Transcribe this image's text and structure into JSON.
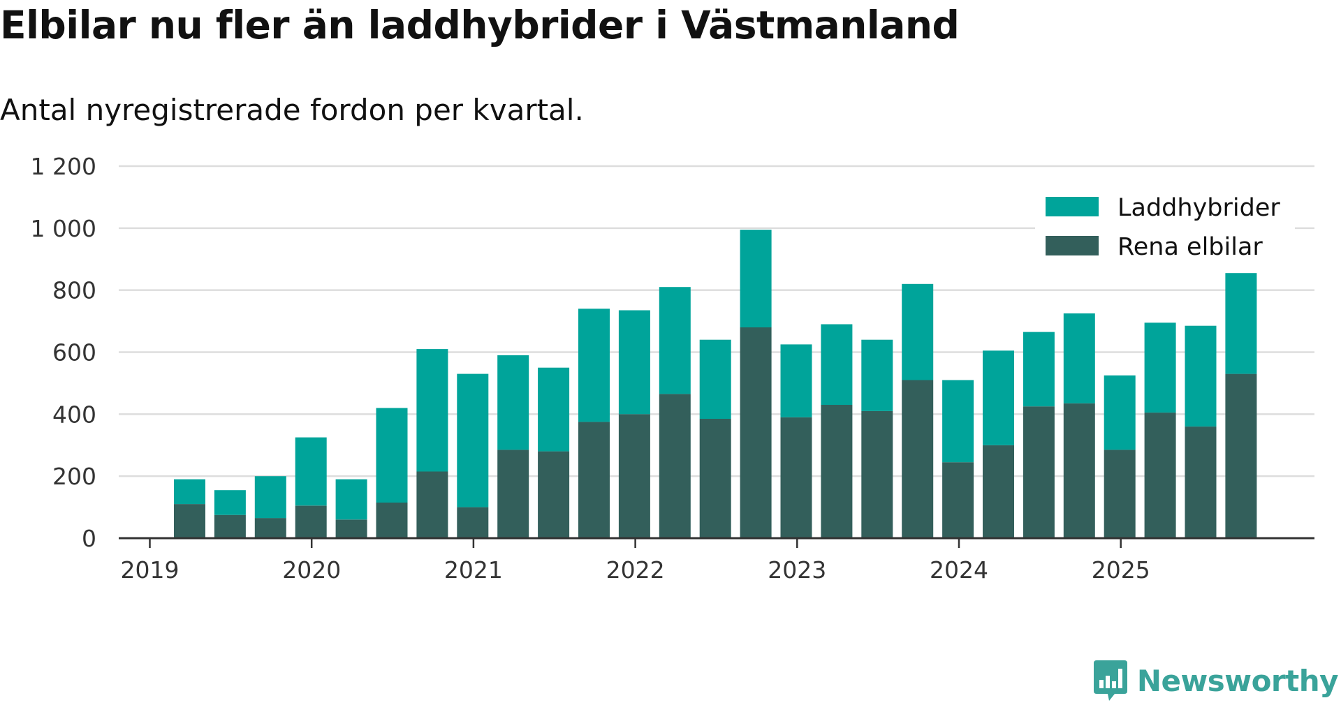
{
  "title": "Elbilar nu fler än laddhybrider i Västmanland",
  "subtitle": "Antal nyregistrerade fordon per kvartal.",
  "brand": {
    "name": "Newsworthy",
    "logo_icon": "newsworthy-logo-icon",
    "color": "#3aa39a"
  },
  "chart_data": {
    "type": "bar",
    "stacked": true,
    "title": "Elbilar nu fler än laddhybrider i Västmanland",
    "subtitle": "Antal nyregistrerade fordon per kvartal.",
    "xlabel": "",
    "ylabel": "",
    "ylim": [
      0,
      1200
    ],
    "y_ticks": [
      0,
      200,
      400,
      600,
      800,
      1000,
      1200
    ],
    "y_tick_labels": [
      "0",
      "200",
      "400",
      "600",
      "800",
      "1 000",
      "1 200"
    ],
    "x_tick_labels": [
      "2019",
      "2020",
      "2021",
      "2022",
      "2023",
      "2024",
      "2025"
    ],
    "grid": true,
    "legend_position": "top-right",
    "categories": [
      "2019 Q2",
      "2019 Q3",
      "2019 Q4",
      "2020 Q1",
      "2020 Q2",
      "2020 Q3",
      "2020 Q4",
      "2021 Q1",
      "2021 Q2",
      "2021 Q3",
      "2021 Q4",
      "2022 Q1",
      "2022 Q2",
      "2022 Q3",
      "2022 Q4",
      "2023 Q1",
      "2023 Q2",
      "2023 Q3",
      "2023 Q4",
      "2024 Q1",
      "2024 Q2",
      "2024 Q3",
      "2024 Q4",
      "2025 Q1",
      "2025 Q2",
      "2025 Q3",
      "2025 Q4"
    ],
    "series": [
      {
        "name": "Rena elbilar",
        "color": "#335f5b",
        "values": [
          110,
          75,
          65,
          105,
          60,
          115,
          215,
          100,
          285,
          280,
          375,
          400,
          465,
          385,
          680,
          390,
          430,
          410,
          510,
          245,
          300,
          425,
          435,
          285,
          405,
          360,
          530
        ]
      },
      {
        "name": "Laddhybrider",
        "color": "#00a49a",
        "values": [
          80,
          80,
          135,
          220,
          130,
          305,
          395,
          430,
          305,
          270,
          365,
          335,
          345,
          255,
          315,
          235,
          260,
          230,
          310,
          265,
          305,
          240,
          290,
          240,
          290,
          325,
          325
        ]
      }
    ]
  },
  "colors": {
    "axis": "#333333",
    "grid": "#dddddd"
  }
}
